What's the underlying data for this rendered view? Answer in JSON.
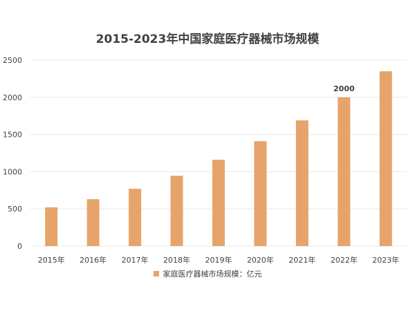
{
  "chart_data": {
    "type": "bar",
    "title": "2015-2023年中国家庭医疗器械市场规模",
    "categories": [
      "2015年",
      "2016年",
      "2017年",
      "2018年",
      "2019年",
      "2020年",
      "2021年",
      "2022年",
      "2023年"
    ],
    "series": [
      {
        "name": "家庭医疗器械市场规模：亿元",
        "values": [
          520,
          630,
          770,
          945,
          1160,
          1410,
          1690,
          2000,
          2350
        ],
        "color": "#E6A46A"
      }
    ],
    "data_labels": [
      {
        "category": "2022年",
        "text": "2000"
      }
    ],
    "y_ticks": [
      "0",
      "500",
      "1000",
      "1500",
      "2000",
      "2500"
    ],
    "ylim": [
      0,
      2500
    ],
    "grid": true,
    "legend_position": "bottom",
    "colors": {
      "bar": "#E6A46A",
      "grid": "#E7E7E7",
      "text": "#404040"
    }
  }
}
